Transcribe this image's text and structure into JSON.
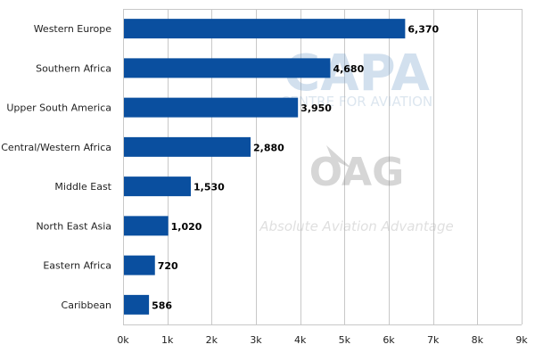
{
  "chart_data": {
    "type": "bar",
    "orientation": "horizontal",
    "categories": [
      "Western Europe",
      "Southern Africa",
      "Upper South America",
      "Central/Western Africa",
      "Middle East",
      "North East Asia",
      "Eastern Africa",
      "Caribbean"
    ],
    "values": [
      6370,
      4680,
      3950,
      2880,
      1530,
      1020,
      720,
      586
    ],
    "value_labels": [
      "6,370",
      "4,680",
      "3,950",
      "2,880",
      "1,530",
      "1,020",
      "720",
      "586"
    ],
    "x_ticks": [
      0,
      1000,
      2000,
      3000,
      4000,
      5000,
      6000,
      7000,
      8000,
      9000
    ],
    "x_tick_labels": [
      "0k",
      "1k",
      "2k",
      "3k",
      "4k",
      "5k",
      "6k",
      "7k",
      "8k",
      "9k"
    ],
    "xlim": [
      0,
      9000
    ],
    "title": "",
    "xlabel": "",
    "ylabel": "",
    "grid": "vertical",
    "legend": "none",
    "bar_color": "#0a4f9f"
  },
  "watermarks": {
    "capa": {
      "logo_text": "CAPA",
      "tagline": "CENTRE FOR AVIATION"
    },
    "oag": {
      "logo_text": "OAG",
      "tagline": "Absolute Aviation Advantage"
    }
  }
}
